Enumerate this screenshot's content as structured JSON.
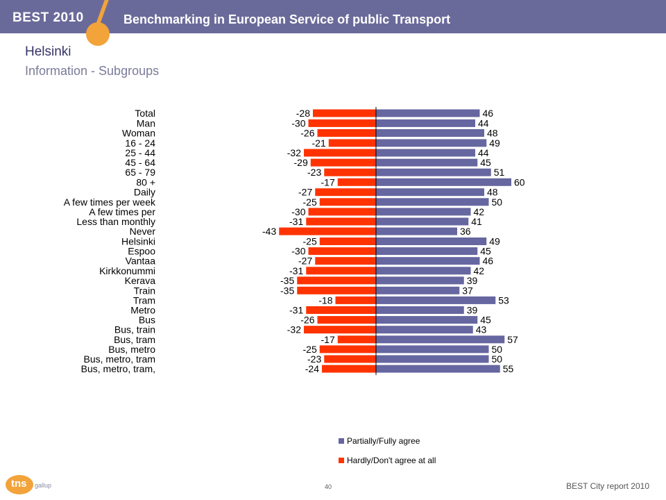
{
  "header": {
    "brand": "BEST 2010",
    "title": "Benchmarking in European Service of public Transport"
  },
  "page": {
    "title": "Helsinki",
    "subtitle": "Information - Subgroups"
  },
  "colors": {
    "agree": "#6666a0",
    "disagree": "#ff3300",
    "header_bg": "#6a6a9a",
    "accent": "#f2a33a"
  },
  "chart_data": {
    "type": "bar",
    "orientation": "horizontal-diverging",
    "categories": [
      "Total",
      "Man",
      "Woman",
      "16 - 24",
      "25 - 44",
      "45 - 64",
      "65 - 79",
      "80 +",
      "Daily",
      "A few times per week",
      "A few times per",
      "Less than monthly",
      "Never",
      "Helsinki",
      "Espoo",
      "Vantaa",
      "Kirkkonummi",
      "Kerava",
      "Train",
      "Tram",
      "Metro",
      "Bus",
      "Bus, train",
      "Bus, tram",
      "Bus, metro",
      "Bus, metro, tram",
      "Bus, metro, tram,"
    ],
    "groups": [
      [
        0
      ],
      [
        1,
        2
      ],
      [
        3,
        4,
        5,
        6,
        7
      ],
      [
        8,
        9,
        10,
        11,
        12
      ],
      [
        13,
        14,
        15,
        16,
        17
      ],
      [
        18,
        19,
        20,
        21,
        22,
        23,
        24,
        25,
        26
      ]
    ],
    "series": [
      {
        "name": "Partially/Fully agree",
        "values": [
          46,
          44,
          48,
          49,
          44,
          45,
          51,
          60,
          48,
          50,
          42,
          41,
          36,
          49,
          45,
          46,
          42,
          39,
          37,
          53,
          39,
          45,
          43,
          57,
          50,
          50,
          55
        ]
      },
      {
        "name": "Hardly/Don't agree at all",
        "values": [
          -28,
          -30,
          -26,
          -21,
          -32,
          -29,
          -23,
          -17,
          -27,
          -25,
          -30,
          -31,
          -43,
          -25,
          -30,
          -27,
          -31,
          -35,
          -35,
          -18,
          -31,
          -26,
          -32,
          -17,
          -25,
          -23,
          -24
        ]
      }
    ],
    "legend_position": "bottom"
  },
  "legend": {
    "agree": "Partially/Fully agree",
    "disagree": "Hardly/Don't agree at all"
  },
  "footer": {
    "logo_tns": "tns",
    "logo_gallup": "gallup",
    "page_number": "40",
    "report": "BEST City report 2010"
  }
}
